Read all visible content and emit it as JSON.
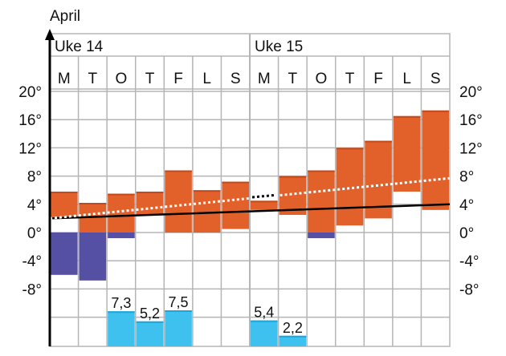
{
  "chart_data": {
    "type": "bar",
    "title": "April",
    "weeks": [
      {
        "label": "Uke 14",
        "days": [
          "M",
          "T",
          "O",
          "T",
          "F",
          "L",
          "S"
        ]
      },
      {
        "label": "Uke 15",
        "days": [
          "M",
          "T",
          "O",
          "T",
          "F",
          "L",
          "S"
        ]
      }
    ],
    "yticks": [
      20,
      16,
      12,
      8,
      4,
      0,
      -4,
      -8
    ],
    "ytick_labels": [
      "20°",
      "16°",
      "12°",
      "8°",
      "4°",
      "0°",
      "-4°",
      "-8°"
    ],
    "ylim": [
      -8,
      20
    ],
    "temperature_range": [
      {
        "min": 2.0,
        "max": 5.8
      },
      {
        "min": 0.0,
        "max": 4.2
      },
      {
        "min": 0.0,
        "max": 5.5
      },
      {
        "min": 2.5,
        "max": 5.8
      },
      {
        "min": 0.0,
        "max": 8.8
      },
      {
        "min": 0.0,
        "max": 6.0
      },
      {
        "min": 0.5,
        "max": 7.2
      },
      {
        "min": 3.2,
        "max": 4.5
      },
      {
        "min": 2.5,
        "max": 8.0
      },
      {
        "min": 0.0,
        "max": 8.8
      },
      {
        "min": 1.0,
        "max": 12.0
      },
      {
        "min": 2.0,
        "max": 13.0
      },
      {
        "min": 5.8,
        "max": 16.5
      },
      {
        "min": 3.2,
        "max": 17.3
      }
    ],
    "frost": [
      {
        "min": -6.0,
        "max": 0
      },
      {
        "min": -6.8,
        "max": 0
      },
      {
        "min": -0.8,
        "max": 0
      },
      null,
      null,
      null,
      null,
      null,
      null,
      {
        "min": -0.8,
        "max": 0
      },
      null,
      null,
      null,
      null
    ],
    "precipitation": [
      null,
      null,
      7.3,
      5.2,
      7.5,
      null,
      null,
      5.4,
      2.2,
      null,
      null,
      null,
      null,
      null
    ],
    "precipitation_labels": [
      "",
      "",
      "7,3",
      "5,2",
      "7,5",
      "",
      "",
      "5,4",
      "2,2",
      "",
      "",
      "",
      "",
      ""
    ],
    "trend_normal": {
      "start": 2.0,
      "end": 4.0
    },
    "trend_observed": {
      "start": 2.0,
      "end": 7.7
    },
    "trend_gap": {
      "start": 5.0,
      "end": 5.3
    },
    "colors": {
      "warm": "#e2612a",
      "warm_edge": "#c4491a",
      "frost": "#5550a4",
      "rain": "#3ec1ef",
      "grid": "#b5b5b5",
      "axis": "#000000"
    }
  }
}
